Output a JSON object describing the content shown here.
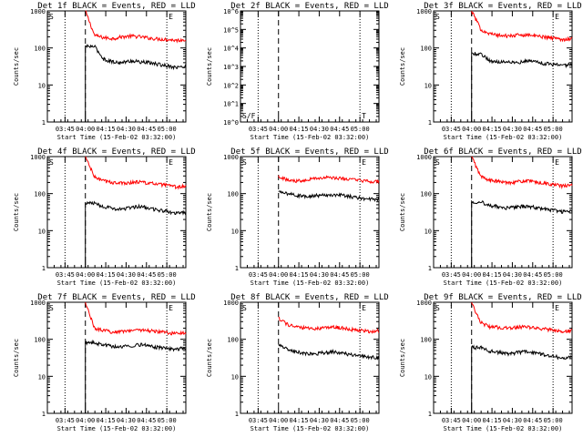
{
  "chart_data": [
    {
      "type": "line",
      "title": "Det 1f BLACK = Events, RED = LLD",
      "xlabel": "Start Time (15-Feb-02 03:32:00)",
      "ylabel": "Counts/sec",
      "yscale": "log",
      "ylim": [
        1,
        1000
      ],
      "yticks": [
        {
          "v": 1,
          "t": "1"
        },
        {
          "v": 10,
          "t": "10"
        },
        {
          "v": 100,
          "t": "100"
        },
        {
          "v": 1000,
          "t": "1000"
        }
      ],
      "xticks": [
        "03:45",
        "04:00",
        "04:15",
        "04:30",
        "04:45",
        "05:00"
      ],
      "flags": [
        "S",
        "E"
      ],
      "series": [
        {
          "name": "LLD",
          "color": "#ff0000",
          "values": [
            1000,
            220,
            190,
            180,
            200,
            210,
            200,
            185,
            175,
            170,
            160,
            170
          ]
        },
        {
          "name": "Events",
          "color": "#000000",
          "values": [
            0,
            110,
            50,
            42,
            40,
            45,
            42,
            40,
            36,
            33,
            30,
            31
          ]
        }
      ]
    },
    {
      "type": "line",
      "title": "Det 2f BLACK = Events, RED = LLD",
      "xlabel": "Start Time (15-Feb-02 03:32:00)",
      "ylabel": "Counts/sec",
      "yscale": "log",
      "ylim": [
        1,
        1000000
      ],
      "yticks": [
        {
          "v": 1,
          "t": "10^0"
        },
        {
          "v": 10,
          "t": "10^1"
        },
        {
          "v": 100,
          "t": "10^2"
        },
        {
          "v": 1000,
          "t": "10^3"
        },
        {
          "v": 10000,
          "t": "10^4"
        },
        {
          "v": 100000,
          "t": "10^5"
        },
        {
          "v": 1000000,
          "t": "10^6"
        }
      ],
      "xticks": [
        "03:45",
        "04:00",
        "04:15",
        "04:30",
        "04:45",
        "05:00"
      ],
      "flags": [
        "S/F",
        "T"
      ],
      "series": []
    },
    {
      "type": "line",
      "title": "Det 3f BLACK = Events, RED = LLD",
      "xlabel": "Start Time (15-Feb-02 03:32:00)",
      "ylabel": "Counts/sec",
      "yscale": "log",
      "ylim": [
        1,
        1000
      ],
      "yticks": [
        {
          "v": 1,
          "t": "1"
        },
        {
          "v": 10,
          "t": "10"
        },
        {
          "v": 100,
          "t": "100"
        },
        {
          "v": 1000,
          "t": "1000"
        }
      ],
      "xticks": [
        "03:45",
        "04:00",
        "04:15",
        "04:30",
        "04:45",
        "05:00"
      ],
      "flags": [
        "S",
        "E"
      ],
      "series": [
        {
          "name": "LLD",
          "color": "#ff0000",
          "values": [
            1000,
            320,
            240,
            220,
            210,
            220,
            230,
            210,
            200,
            185,
            170,
            180
          ]
        },
        {
          "name": "Events",
          "color": "#000000",
          "values": [
            0,
            70,
            45,
            42,
            44,
            40,
            45,
            43,
            38,
            36,
            34,
            36
          ]
        }
      ]
    },
    {
      "type": "line",
      "title": "Det 4f BLACK = Events, RED = LLD",
      "xlabel": "Start Time (15-Feb-02 03:32:00)",
      "ylabel": "Counts/sec",
      "yscale": "log",
      "ylim": [
        1,
        1000
      ],
      "yticks": [
        {
          "v": 1,
          "t": "1"
        },
        {
          "v": 10,
          "t": "10"
        },
        {
          "v": 100,
          "t": "100"
        },
        {
          "v": 1000,
          "t": "1000"
        }
      ],
      "xticks": [
        "03:45",
        "04:00",
        "04:15",
        "04:30",
        "04:45",
        "05:00"
      ],
      "flags": [
        "S",
        "E"
      ],
      "series": [
        {
          "name": "LLD",
          "color": "#ff0000",
          "values": [
            1000,
            280,
            220,
            200,
            190,
            200,
            210,
            190,
            180,
            165,
            150,
            160
          ]
        },
        {
          "name": "Events",
          "color": "#000000",
          "values": [
            0,
            55,
            45,
            40,
            38,
            42,
            45,
            40,
            36,
            33,
            30,
            32
          ]
        }
      ]
    },
    {
      "type": "line",
      "title": "Det 5f BLACK = Events, RED = LLD",
      "xlabel": "Start Time (15-Feb-02 03:32:00)",
      "ylabel": "Counts/sec",
      "yscale": "log",
      "ylim": [
        1,
        1000
      ],
      "yticks": [
        {
          "v": 1,
          "t": "1"
        },
        {
          "v": 10,
          "t": "10"
        },
        {
          "v": 100,
          "t": "100"
        },
        {
          "v": 1000,
          "t": "1000"
        }
      ],
      "xticks": [
        "03:45",
        "04:00",
        "04:15",
        "04:30",
        "04:45",
        "05:00"
      ],
      "flags": [
        "S",
        "E"
      ],
      "series": [
        {
          "name": "LLD",
          "color": "#ff0000",
          "values": [
            300,
            230,
            220,
            240,
            260,
            270,
            265,
            255,
            240,
            225,
            210,
            220
          ]
        },
        {
          "name": "Events",
          "color": "#000000",
          "values": [
            110,
            100,
            90,
            85,
            88,
            92,
            95,
            90,
            82,
            75,
            70,
            72
          ]
        }
      ]
    },
    {
      "type": "line",
      "title": "Det 6f BLACK = Events, RED = LLD",
      "xlabel": "Start Time (15-Feb-02 03:32:00)",
      "ylabel": "Counts/sec",
      "yscale": "log",
      "ylim": [
        1,
        1000
      ],
      "yticks": [
        {
          "v": 1,
          "t": "1"
        },
        {
          "v": 10,
          "t": "10"
        },
        {
          "v": 100,
          "t": "100"
        },
        {
          "v": 1000,
          "t": "1000"
        }
      ],
      "xticks": [
        "03:45",
        "04:00",
        "04:15",
        "04:30",
        "04:45",
        "05:00"
      ],
      "flags": [
        "S",
        "E"
      ],
      "series": [
        {
          "name": "LLD",
          "color": "#ff0000",
          "values": [
            1000,
            290,
            230,
            210,
            200,
            210,
            220,
            205,
            190,
            175,
            160,
            170
          ]
        },
        {
          "name": "Events",
          "color": "#000000",
          "values": [
            0,
            60,
            48,
            44,
            40,
            44,
            46,
            42,
            38,
            35,
            32,
            34
          ]
        }
      ]
    },
    {
      "type": "line",
      "title": "Det 7f BLACK = Events, RED = LLD",
      "xlabel": "Start Time (15-Feb-02 03:32:00)",
      "ylabel": "Counts/sec",
      "yscale": "log",
      "ylim": [
        1,
        1000
      ],
      "yticks": [
        {
          "v": 1,
          "t": "1"
        },
        {
          "v": 10,
          "t": "10"
        },
        {
          "v": 100,
          "t": "100"
        },
        {
          "v": 1000,
          "t": "1000"
        }
      ],
      "xticks": [
        "03:45",
        "04:00",
        "04:15",
        "04:30",
        "04:45",
        "05:00"
      ],
      "flags": [
        "S",
        "E"
      ],
      "series": [
        {
          "name": "LLD",
          "color": "#ff0000",
          "values": [
            1000,
            200,
            170,
            160,
            165,
            175,
            180,
            170,
            160,
            150,
            145,
            150
          ]
        },
        {
          "name": "Events",
          "color": "#000000",
          "values": [
            0,
            80,
            70,
            65,
            62,
            68,
            72,
            66,
            60,
            56,
            55,
            58
          ]
        }
      ]
    },
    {
      "type": "line",
      "title": "Det 8f BLACK = Events, RED = LLD",
      "xlabel": "Start Time (15-Feb-02 03:32:00)",
      "ylabel": "Counts/sec",
      "yscale": "log",
      "ylim": [
        1,
        1000
      ],
      "yticks": [
        {
          "v": 1,
          "t": "1"
        },
        {
          "v": 10,
          "t": "10"
        },
        {
          "v": 100,
          "t": "100"
        },
        {
          "v": 1000,
          "t": "1000"
        }
      ],
      "xticks": [
        "03:45",
        "04:00",
        "04:15",
        "04:30",
        "04:45",
        "05:00"
      ],
      "flags": [
        "S",
        "E"
      ],
      "series": [
        {
          "name": "LLD",
          "color": "#ff0000",
          "values": [
            380,
            250,
            210,
            200,
            195,
            205,
            215,
            200,
            185,
            175,
            165,
            170
          ]
        },
        {
          "name": "Events",
          "color": "#000000",
          "values": [
            70,
            55,
            45,
            42,
            40,
            44,
            46,
            42,
            38,
            35,
            33,
            32
          ]
        }
      ]
    },
    {
      "type": "line",
      "title": "Det 9f BLACK = Events, RED = LLD",
      "xlabel": "Start Time (15-Feb-02 03:32:00)",
      "ylabel": "Counts/sec",
      "yscale": "log",
      "ylim": [
        1,
        1000
      ],
      "yticks": [
        {
          "v": 1,
          "t": "1"
        },
        {
          "v": 10,
          "t": "10"
        },
        {
          "v": 100,
          "t": "100"
        },
        {
          "v": 1000,
          "t": "1000"
        }
      ],
      "xticks": [
        "03:45",
        "04:00",
        "04:15",
        "04:30",
        "04:45",
        "05:00"
      ],
      "flags": [
        "S",
        "E"
      ],
      "series": [
        {
          "name": "LLD",
          "color": "#ff0000",
          "values": [
            1000,
            280,
            220,
            210,
            200,
            210,
            215,
            200,
            190,
            175,
            160,
            170
          ]
        },
        {
          "name": "Events",
          "color": "#000000",
          "values": [
            0,
            60,
            48,
            44,
            40,
            44,
            46,
            42,
            38,
            35,
            31,
            33
          ]
        }
      ]
    }
  ]
}
